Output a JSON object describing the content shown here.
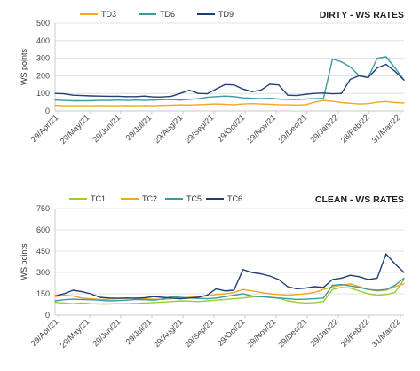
{
  "chart_data": [
    {
      "type": "line",
      "title": "DIRTY - WS RATES",
      "ylabel": "WS points",
      "ylim": [
        0,
        500
      ],
      "yticks": [
        0,
        100,
        200,
        300,
        400,
        500
      ],
      "xlabels": [
        "29/Apr/21",
        "29/May/21",
        "29/Jun/21",
        "29/Jul/21",
        "29/Aug/21",
        "29/Sep/21",
        "29/Oct/21",
        "29/Nov/21",
        "29/Dec/21",
        "29/Jan/22",
        "28/Feb/22",
        "31/Mar/22"
      ],
      "grid": true,
      "legend_position": "top-left",
      "series": [
        {
          "name": "TD3",
          "color": "#f5a623",
          "values": [
            32,
            30,
            30,
            30,
            30,
            31,
            30,
            30,
            31,
            30,
            31,
            30,
            32,
            33,
            35,
            34,
            36,
            38,
            40,
            38,
            36,
            40,
            42,
            40,
            38,
            36,
            35,
            34,
            36,
            50,
            60,
            55,
            48,
            44,
            40,
            42,
            50,
            54,
            48,
            46
          ]
        },
        {
          "name": "TD6",
          "color": "#3a9ca3",
          "values": [
            62,
            60,
            58,
            58,
            58,
            60,
            60,
            62,
            60,
            62,
            60,
            62,
            64,
            65,
            62,
            66,
            70,
            78,
            82,
            85,
            82,
            75,
            72,
            70,
            72,
            68,
            66,
            65,
            68,
            70,
            72,
            295,
            280,
            250,
            200,
            190,
            300,
            308,
            245,
            175
          ]
        },
        {
          "name": "TD9",
          "color": "#1f3f74",
          "values": [
            100,
            98,
            90,
            88,
            86,
            85,
            84,
            84,
            82,
            82,
            85,
            80,
            80,
            84,
            100,
            118,
            100,
            98,
            125,
            150,
            148,
            125,
            110,
            118,
            152,
            148,
            90,
            88,
            95,
            100,
            102,
            98,
            100,
            180,
            200,
            190,
            245,
            265,
            225,
            175
          ]
        }
      ]
    },
    {
      "type": "line",
      "title": "CLEAN - WS RATES",
      "ylabel": "WS points",
      "ylim": [
        0,
        750
      ],
      "yticks": [
        0,
        150,
        300,
        450,
        600,
        750
      ],
      "xlabels": [
        "29/Apr/21",
        "29/May/21",
        "29/Jun/21",
        "29/Jul/21",
        "29/Aug/21",
        "29/Sep/21",
        "29/Oct/21",
        "29/Nov/21",
        "29/Dec/21",
        "29/Jan/22",
        "28/Feb/22",
        "31/Mar/22"
      ],
      "grid": true,
      "legend_position": "top-left",
      "series": [
        {
          "name": "TC1",
          "color": "#9acd32",
          "values": [
            90,
            85,
            80,
            85,
            80,
            78,
            78,
            80,
            80,
            82,
            85,
            88,
            92,
            95,
            100,
            98,
            95,
            100,
            105,
            110,
            115,
            120,
            128,
            130,
            125,
            118,
            100,
            90,
            85,
            88,
            95,
            180,
            195,
            190,
            170,
            150,
            140,
            145,
            160,
            250
          ]
        },
        {
          "name": "TC2",
          "color": "#f5a623",
          "values": [
            130,
            140,
            135,
            120,
            115,
            110,
            112,
            115,
            118,
            120,
            115,
            112,
            110,
            115,
            120,
            125,
            130,
            135,
            145,
            150,
            160,
            180,
            170,
            160,
            150,
            145,
            140,
            145,
            150,
            160,
            180,
            200,
            210,
            220,
            200,
            180,
            170,
            175,
            200,
            220
          ]
        },
        {
          "name": "TC5",
          "color": "#3a9ca3",
          "values": [
            100,
            108,
            112,
            110,
            108,
            105,
            100,
            102,
            105,
            110,
            108,
            105,
            112,
            130,
            125,
            120,
            118,
            115,
            120,
            130,
            140,
            150,
            135,
            130,
            125,
            120,
            115,
            110,
            112,
            115,
            120,
            210,
            215,
            205,
            195,
            180,
            175,
            180,
            210,
            260
          ]
        },
        {
          "name": "TC6",
          "color": "#1f3f74",
          "values": [
            135,
            150,
            175,
            165,
            150,
            125,
            120,
            118,
            120,
            118,
            122,
            130,
            125,
            120,
            115,
            120,
            125,
            140,
            185,
            170,
            175,
            320,
            300,
            290,
            275,
            250,
            200,
            185,
            190,
            200,
            195,
            250,
            260,
            280,
            270,
            250,
            260,
            430,
            360,
            300
          ]
        }
      ]
    }
  ]
}
